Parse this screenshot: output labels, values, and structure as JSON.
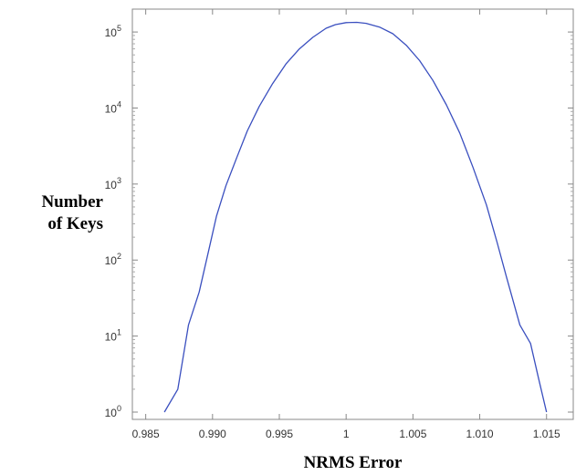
{
  "chart_data": {
    "type": "line",
    "title": "",
    "xlabel": "NRMS Error",
    "ylabel_lines": [
      "Number",
      "of Keys"
    ],
    "xlim": [
      0.984,
      1.017
    ],
    "ylim": [
      1,
      200000
    ],
    "yscale": "log",
    "grid": false,
    "x_ticks": [
      {
        "value": 0.985,
        "label": "0.985"
      },
      {
        "value": 0.99,
        "label": "0.990"
      },
      {
        "value": 0.995,
        "label": "0.995"
      },
      {
        "value": 1.0,
        "label": "1"
      },
      {
        "value": 1.005,
        "label": "1.005"
      },
      {
        "value": 1.01,
        "label": "1.010"
      },
      {
        "value": 1.015,
        "label": "1.015"
      }
    ],
    "y_ticks": [
      {
        "value": 1,
        "exp": "0"
      },
      {
        "value": 10,
        "exp": "1"
      },
      {
        "value": 100,
        "exp": "2"
      },
      {
        "value": 1000,
        "exp": "3"
      },
      {
        "value": 10000,
        "exp": "4"
      },
      {
        "value": 100000,
        "exp": "5"
      }
    ],
    "series": [
      {
        "color": "#3a4fbf",
        "x": [
          0.9864,
          0.9874,
          0.9882,
          0.989,
          0.9897,
          0.9903,
          0.991,
          0.9918,
          0.9926,
          0.9935,
          0.9945,
          0.9955,
          0.9965,
          0.9975,
          0.9985,
          0.9992,
          1.0,
          1.0008,
          1.0015,
          1.0025,
          1.0035,
          1.0045,
          1.0055,
          1.0065,
          1.0075,
          1.0085,
          1.0095,
          1.0105,
          1.0113,
          1.012,
          1.013,
          1.0138,
          1.0144,
          1.015
        ],
        "y": [
          1.0,
          2.0,
          14.0,
          38.0,
          130.0,
          380.0,
          950.0,
          2200.0,
          5000.0,
          10500.0,
          21000.0,
          38000.0,
          60000.0,
          85000.0,
          112000.0,
          125000.0,
          133000.0,
          134000.0,
          130000.0,
          116000.0,
          95000.0,
          67000.0,
          42000.0,
          23000.0,
          11000.0,
          4700.0,
          1650.0,
          530.0,
          170.0,
          60.0,
          14.0,
          8.0,
          2.8,
          1.0
        ]
      }
    ]
  }
}
